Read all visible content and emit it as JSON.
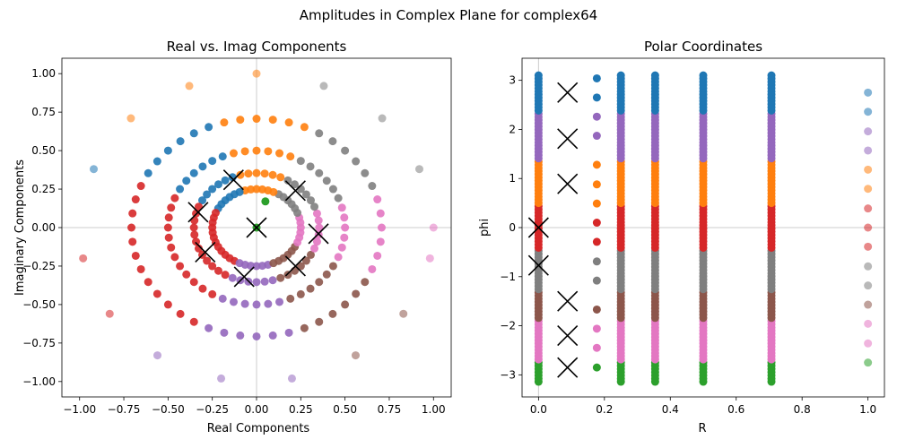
{
  "figure": {
    "suptitle": "Amplitudes in Complex Plane for complex64"
  },
  "chart_data": [
    {
      "type": "scatter",
      "title": "Real vs. Imag Components",
      "xlabel": "Real Components",
      "ylabel": "Imaginary Components",
      "xlim": [
        -1.1,
        1.1
      ],
      "ylim": [
        -1.1,
        1.1
      ],
      "xticks": [
        -1.0,
        -0.75,
        -0.5,
        -0.25,
        0.0,
        0.25,
        0.5,
        0.75,
        1.0
      ],
      "yticks": [
        -1.0,
        -0.75,
        -0.5,
        -0.25,
        0.0,
        0.25,
        0.5,
        0.75,
        1.0
      ],
      "xtick_labels": [
        "−1.00",
        "−0.75",
        "−0.50",
        "−0.25",
        "0.00",
        "0.25",
        "0.50",
        "0.75",
        "1.00"
      ],
      "ytick_labels": [
        "−1.00",
        "−0.75",
        "−0.50",
        "−0.25",
        "0.00",
        "0.25",
        "0.50",
        "0.75",
        "1.00"
      ],
      "reference_lines": {
        "x": 0,
        "y": 0
      },
      "colors": [
        "#1f77b4",
        "#ff7f0e",
        "#2ca02c",
        "#d62728",
        "#9467bd",
        "#8c564b",
        "#e377c2",
        "#7f7f7f"
      ],
      "rings": [
        {
          "r": 0.25,
          "alpha": 1.0
        },
        {
          "r": 0.354,
          "alpha": 1.0
        },
        {
          "r": 0.5,
          "alpha": 1.0
        },
        {
          "r": 0.707,
          "alpha": 1.0
        }
      ],
      "ring_angles_deg": [
        0,
        15,
        30,
        45,
        60,
        75,
        90,
        105,
        120,
        135,
        150,
        165,
        180,
        195,
        210,
        225,
        240,
        255,
        270,
        285,
        300,
        315,
        330,
        345
      ],
      "outer_points": [
        {
          "x": 0.0,
          "y": 1.0,
          "color": "#ff7f0e"
        },
        {
          "x": -0.38,
          "y": 0.92,
          "color": "#ff7f0e"
        },
        {
          "x": -0.71,
          "y": 0.71,
          "color": "#ff7f0e"
        },
        {
          "x": -0.92,
          "y": 0.38,
          "color": "#1f77b4"
        },
        {
          "x": 0.38,
          "y": 0.92,
          "color": "#7f7f7f"
        },
        {
          "x": 0.71,
          "y": 0.71,
          "color": "#7f7f7f"
        },
        {
          "x": 0.92,
          "y": 0.38,
          "color": "#7f7f7f"
        },
        {
          "x": 1.0,
          "y": 0.0,
          "color": "#e377c2"
        },
        {
          "x": 0.98,
          "y": -0.2,
          "color": "#e377c2"
        },
        {
          "x": 0.83,
          "y": -0.56,
          "color": "#8c564b"
        },
        {
          "x": 0.56,
          "y": -0.83,
          "color": "#8c564b"
        },
        {
          "x": 0.2,
          "y": -0.98,
          "color": "#9467bd"
        },
        {
          "x": -0.2,
          "y": -0.98,
          "color": "#9467bd"
        },
        {
          "x": -0.56,
          "y": -0.83,
          "color": "#9467bd"
        },
        {
          "x": -0.83,
          "y": -0.56,
          "color": "#d62728"
        },
        {
          "x": -0.98,
          "y": -0.2,
          "color": "#d62728"
        }
      ],
      "green_points": [
        {
          "x": 0.0,
          "y": 0.0
        },
        {
          "x": 0.05,
          "y": 0.17
        }
      ],
      "x_markers": [
        {
          "x": -0.13,
          "y": 0.31
        },
        {
          "x": 0.22,
          "y": 0.24
        },
        {
          "x": -0.33,
          "y": 0.1
        },
        {
          "x": 0.0,
          "y": 0.0
        },
        {
          "x": 0.35,
          "y": -0.04
        },
        {
          "x": -0.29,
          "y": -0.16
        },
        {
          "x": 0.22,
          "y": -0.25
        },
        {
          "x": -0.07,
          "y": -0.32
        }
      ]
    },
    {
      "type": "scatter",
      "title": "Polar Coordinates",
      "xlabel": "R",
      "ylabel": "phi",
      "xlim": [
        -0.05,
        1.05
      ],
      "ylim": [
        -3.45,
        3.45
      ],
      "xticks": [
        0.0,
        0.2,
        0.4,
        0.6,
        0.8,
        1.0
      ],
      "yticks": [
        -3,
        -2,
        -1,
        0,
        1,
        2,
        3
      ],
      "xtick_labels": [
        "0.0",
        "0.2",
        "0.4",
        "0.6",
        "0.8",
        "1.0"
      ],
      "ytick_labels": [
        "−3",
        "−2",
        "−1",
        "0",
        "1",
        "2",
        "3"
      ],
      "reference_lines": {
        "x": 0,
        "y": 0
      },
      "phi_color_bands": [
        {
          "from": 2.36,
          "to": 3.15,
          "color": "#1f77b4"
        },
        {
          "from": 1.38,
          "to": 2.36,
          "color": "#9467bd"
        },
        {
          "from": 0.45,
          "to": 1.38,
          "color": "#ff7f0e"
        },
        {
          "from": -0.45,
          "to": 0.45,
          "color": "#d62728"
        },
        {
          "from": -1.3,
          "to": -0.45,
          "color": "#7f7f7f"
        },
        {
          "from": -1.9,
          "to": -1.3,
          "color": "#8c564b"
        },
        {
          "from": -2.7,
          "to": -1.9,
          "color": "#e377c2"
        },
        {
          "from": -3.15,
          "to": -2.7,
          "color": "#2ca02c"
        }
      ],
      "dense_columns": [
        0.0,
        0.25,
        0.354,
        0.5,
        0.707
      ],
      "sparse_columns": [
        {
          "r": 0.177,
          "phi": [
            3.04,
            2.65,
            2.26,
            1.87,
            1.28,
            0.88,
            0.49,
            0.1,
            -0.29,
            -0.69,
            -1.08,
            -1.67,
            -2.06,
            -2.45,
            -2.85
          ]
        },
        {
          "r": 1.0,
          "phi": [
            2.75,
            2.36,
            1.96,
            1.57,
            1.18,
            0.79,
            0.39,
            0.0,
            -0.39,
            -0.79,
            -1.18,
            -1.57,
            -1.96,
            -2.36,
            -2.75
          ]
        }
      ],
      "x_markers": [
        {
          "r": 0.088,
          "phi": 2.75
        },
        {
          "r": 0.088,
          "phi": 1.81
        },
        {
          "r": 0.088,
          "phi": 0.89
        },
        {
          "r": 0.0,
          "phi": 0.0
        },
        {
          "r": 0.0,
          "phi": -0.77
        },
        {
          "r": 0.088,
          "phi": -1.5
        },
        {
          "r": 0.088,
          "phi": -2.2
        },
        {
          "r": 0.088,
          "phi": -2.85
        }
      ]
    }
  ]
}
